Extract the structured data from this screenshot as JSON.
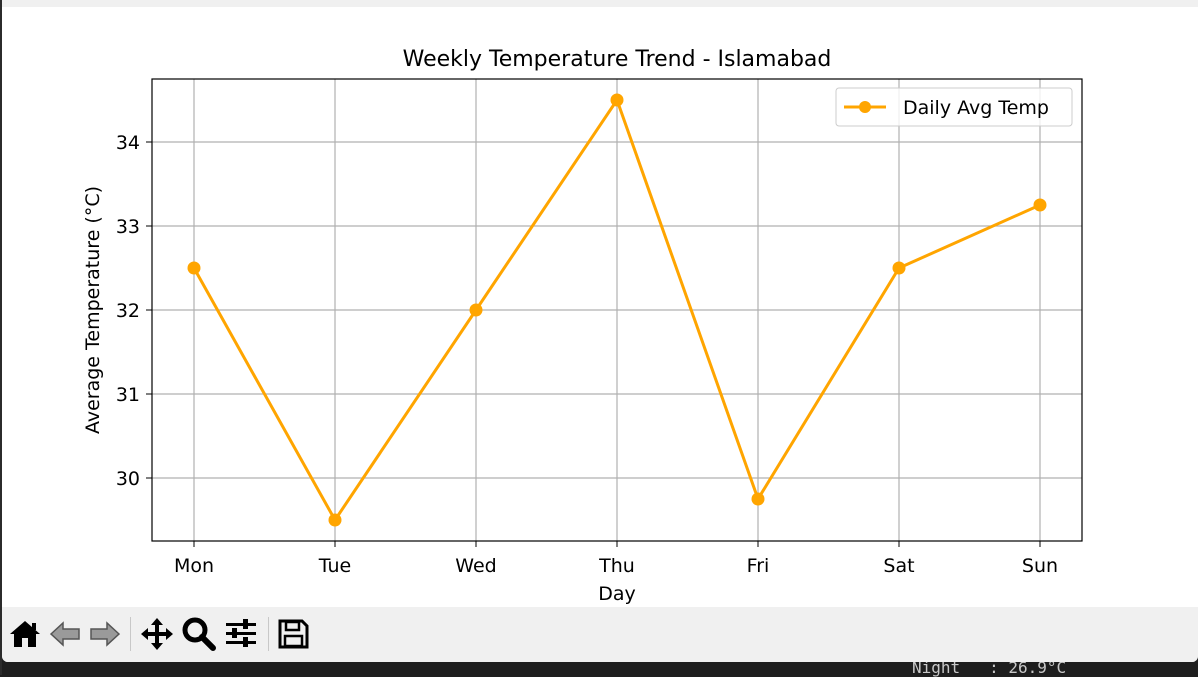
{
  "chart_data": {
    "type": "line",
    "title": "Weekly Temperature Trend - Islamabad",
    "xlabel": "Day",
    "ylabel": "Average Temperature (°C)",
    "categories": [
      "Mon",
      "Tue",
      "Wed",
      "Thu",
      "Fri",
      "Sat",
      "Sun"
    ],
    "series": [
      {
        "name": "Daily Avg Temp",
        "values": [
          32.5,
          29.5,
          32.0,
          34.5,
          29.75,
          32.5,
          33.25
        ],
        "color": "#ffa500"
      }
    ],
    "ylim": [
      29.25,
      34.75
    ],
    "yticks": [
      30,
      31,
      32,
      33,
      34
    ],
    "grid": true,
    "legend_position": "top-right",
    "marker": "circle"
  },
  "toolbar": {
    "buttons": [
      {
        "name": "home-icon"
      },
      {
        "name": "back-arrow-icon"
      },
      {
        "name": "forward-arrow-icon"
      },
      {
        "name": "pan-move-icon"
      },
      {
        "name": "zoom-magnifier-icon"
      },
      {
        "name": "configure-subplots-icon"
      },
      {
        "name": "save-floppy-icon"
      }
    ]
  },
  "background": {
    "terminal_text": "Night   : 26.9°C"
  }
}
